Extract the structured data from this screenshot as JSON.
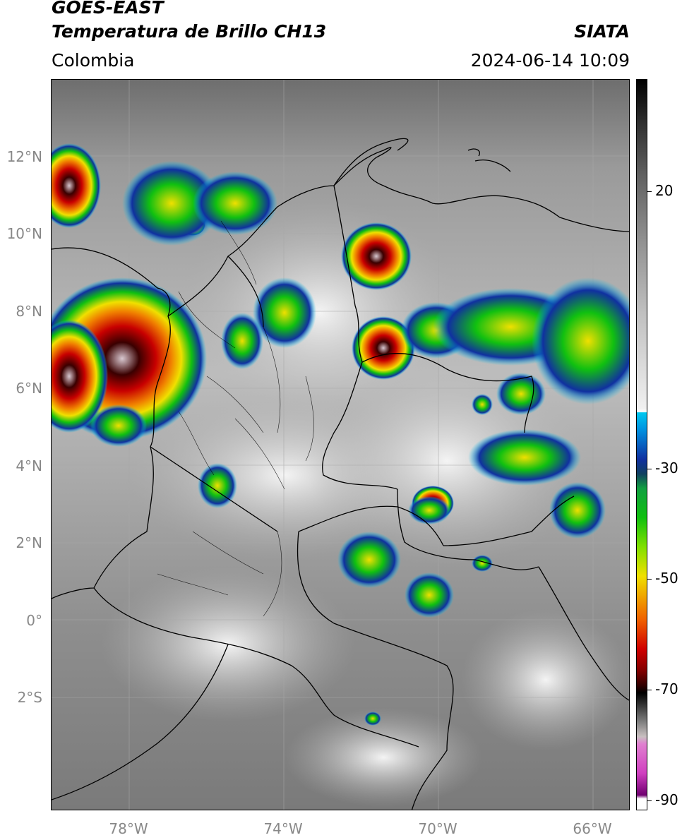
{
  "header": {
    "satellite": "GOES-EAST",
    "product": "Temperatura de Brillo CH13",
    "agency": "SIATA",
    "region": "Colombia",
    "datetime": "2024-06-14 10:09"
  },
  "map": {
    "lat_labels": [
      "12°N",
      "10°N",
      "8°N",
      "6°N",
      "4°N",
      "2°N",
      "0°",
      "2°S"
    ],
    "lon_labels": [
      "78°W",
      "74°W",
      "70°W",
      "66°W"
    ],
    "grid": true
  },
  "colorbar": {
    "tick_labels": [
      "20",
      "-30",
      "-50",
      "-70",
      "-90"
    ],
    "colors": {
      "warm_gray": "#8a8a8a",
      "cold_white": "#eeeeee",
      "cyan": "#00c8f0",
      "blue": "#1030a0",
      "green": "#10c010",
      "yellow": "#f0e000",
      "orange": "#f08000",
      "red": "#d00000",
      "dark_red": "#400000",
      "black": "#000000",
      "magenta": "#d040c0",
      "purple": "#700070"
    }
  }
}
